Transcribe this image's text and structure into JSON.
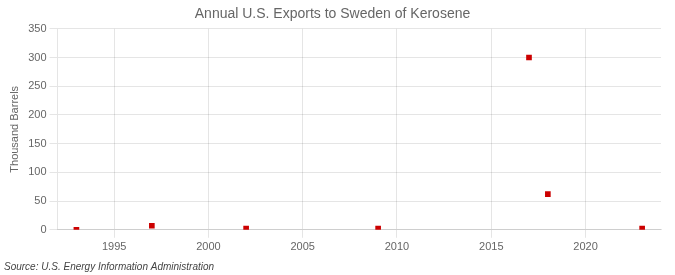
{
  "chart_data": {
    "type": "scatter",
    "title": "Annual U.S. Exports to Sweden of Kerosene",
    "ylabel": "Thousand Barrels",
    "annotations": [
      "Source: U.S. Energy Information Administration"
    ],
    "x": [
      1993,
      1997,
      2002,
      2009,
      2017,
      2018,
      2023
    ],
    "values": [
      0,
      7,
      2,
      2,
      300,
      62,
      2
    ],
    "color": "#cc0000",
    "marker": "square",
    "xlim": [
      1992,
      2024
    ],
    "xticks": [
      1995,
      2000,
      2005,
      2010,
      2015,
      2020
    ],
    "ylim": [
      0,
      350
    ],
    "yticks": [
      0,
      50,
      100,
      150,
      200,
      250,
      300,
      350
    ],
    "grid": true
  }
}
